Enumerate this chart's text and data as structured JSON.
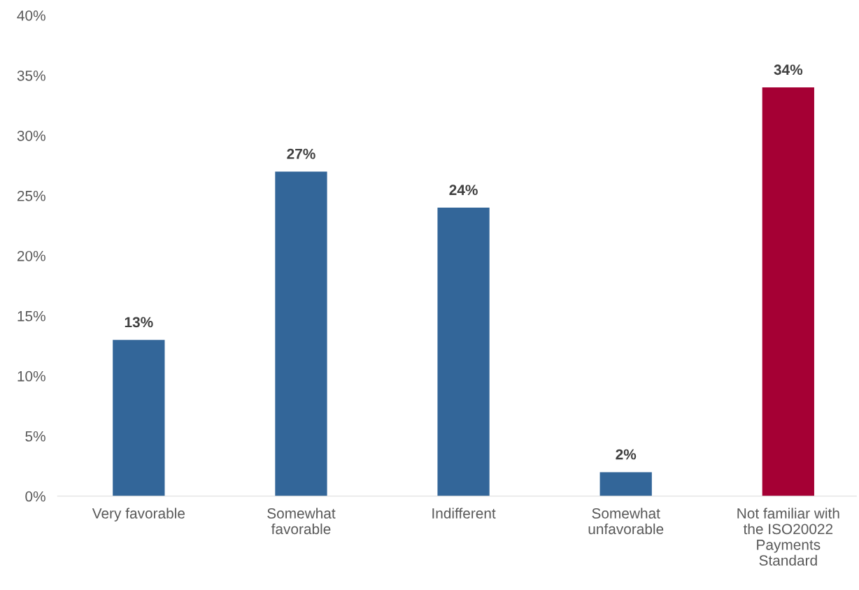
{
  "chart_data": {
    "type": "bar",
    "categories": [
      "Very favorable",
      "Somewhat\nfavorable",
      "Indifferent",
      "Somewhat\nunfavorable",
      "Not familiar with\nthe ISO20022\nPayments\nStandard"
    ],
    "values": [
      13,
      27,
      24,
      2,
      34
    ],
    "colors": [
      "#336699",
      "#336699",
      "#336699",
      "#336699",
      "#a50034"
    ],
    "value_labels": [
      "13%",
      "27%",
      "24%",
      "2%",
      "34%"
    ],
    "ylim": [
      0,
      40
    ],
    "yticks": [
      {
        "value": 0,
        "label": "0%"
      },
      {
        "value": 5,
        "label": "5%"
      },
      {
        "value": 10,
        "label": "10%"
      },
      {
        "value": 15,
        "label": "15%"
      },
      {
        "value": 20,
        "label": "20%"
      },
      {
        "value": 25,
        "label": "25%"
      },
      {
        "value": 30,
        "label": "30%"
      },
      {
        "value": 35,
        "label": "35%"
      },
      {
        "value": 40,
        "label": "40%"
      }
    ],
    "grid": false
  }
}
